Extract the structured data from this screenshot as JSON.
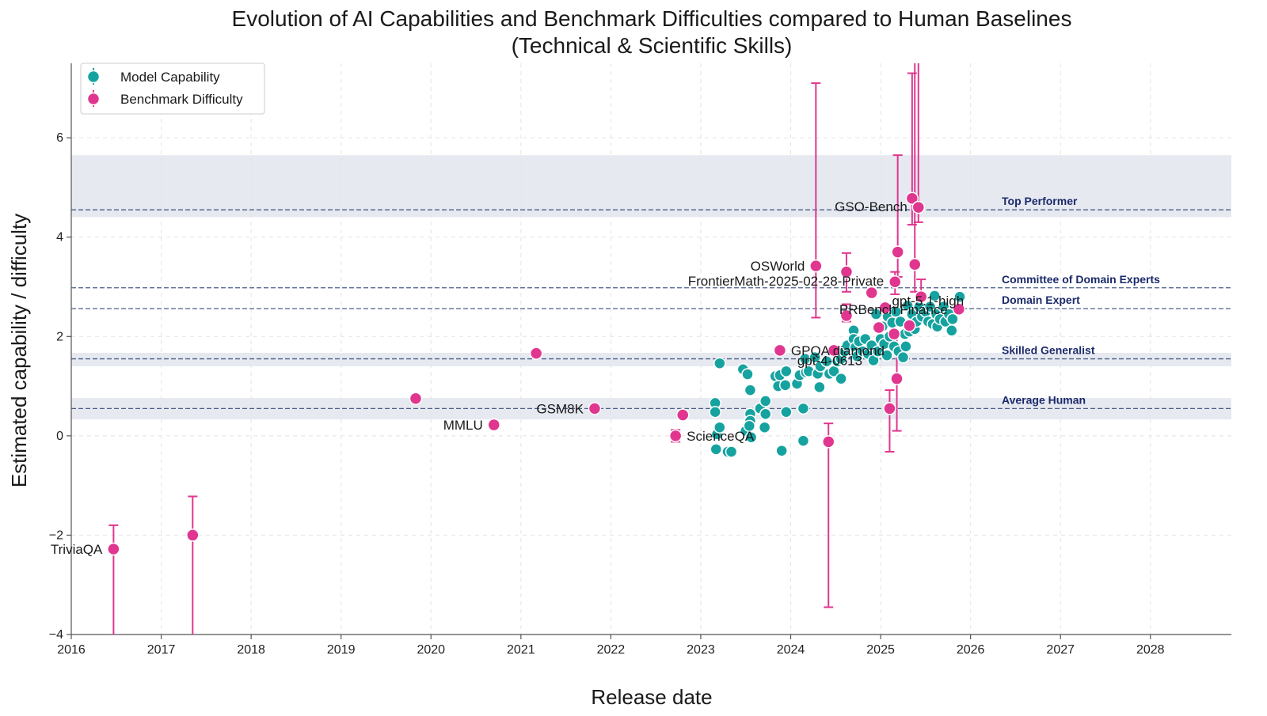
{
  "chart_data": {
    "type": "scatter",
    "title": "Evolution of AI Capabilities and Benchmark Difficulties compared to Human Baselines",
    "subtitle": "(Technical & Scientific Skills)",
    "xlabel": "Release date",
    "ylabel": "Estimated capability / difficulty",
    "xlim": [
      2016.0,
      2028.9
    ],
    "ylim": [
      -4.0,
      7.5
    ],
    "x_ticks": [
      2016,
      2017,
      2018,
      2019,
      2020,
      2021,
      2022,
      2023,
      2024,
      2025,
      2026,
      2027,
      2028
    ],
    "x_tick_labels": [
      "2016",
      "2017",
      "2018",
      "2019",
      "2020",
      "2021",
      "2022",
      "2023",
      "2024",
      "2025",
      "2026",
      "2027",
      "2028"
    ],
    "y_ticks": [
      -4,
      -2,
      0,
      2,
      4,
      6
    ],
    "y_tick_labels": [
      "−4",
      "−2",
      "0",
      "2",
      "4",
      "6"
    ],
    "grid": true,
    "legend_position": "top-left",
    "colors": {
      "model": "#16a3a0",
      "benchmark": "#e0368f",
      "band": "#e6e9f0",
      "hline": "#4a5e86",
      "hline_label": "#1b2a6b"
    },
    "legend": [
      {
        "label": "Model Capability",
        "color": "#16a3a0"
      },
      {
        "label": "Benchmark Difficulty",
        "color": "#e0368f"
      }
    ],
    "human_baselines": [
      {
        "label": "Top Performer",
        "value": 4.55,
        "band": [
          4.4,
          5.65
        ]
      },
      {
        "label": "Committee of Domain Experts",
        "value": 2.98,
        "band": null
      },
      {
        "label": "Domain Expert",
        "value": 2.56,
        "band": null
      },
      {
        "label": "Skilled Generalist",
        "value": 1.55,
        "band": [
          1.4,
          1.67
        ]
      },
      {
        "label": "Average Human",
        "value": 0.55,
        "band": [
          0.33,
          0.76
        ]
      }
    ],
    "benchmarks": [
      {
        "name": "TriviaQA",
        "x": 2016.47,
        "y": -2.28,
        "lo": -4.0,
        "hi": -1.8,
        "label": "TriviaQA"
      },
      {
        "name": "",
        "x": 2017.35,
        "y": -2.0,
        "lo": -4.0,
        "hi": -1.22,
        "label": ""
      },
      {
        "name": "",
        "x": 2019.83,
        "y": 0.75,
        "lo": null,
        "hi": null,
        "label": ""
      },
      {
        "name": "MMLU",
        "x": 2020.7,
        "y": 0.22,
        "lo": null,
        "hi": null,
        "label": "MMLU"
      },
      {
        "name": "",
        "x": 2021.17,
        "y": 1.66,
        "lo": null,
        "hi": null,
        "label": ""
      },
      {
        "name": "GSM8K",
        "x": 2021.82,
        "y": 0.55,
        "lo": null,
        "hi": null,
        "label": "GSM8K"
      },
      {
        "name": "ScienceQA",
        "x": 2022.72,
        "y": 0.0,
        "lo": -0.12,
        "hi": 0.12,
        "label": "ScienceQA"
      },
      {
        "name": "",
        "x": 2022.8,
        "y": 0.42,
        "lo": null,
        "hi": null,
        "label": ""
      },
      {
        "name": "GPQA diamond",
        "x": 2023.88,
        "y": 1.72,
        "lo": null,
        "hi": null,
        "label": "GPQA diamond"
      },
      {
        "name": "OSWorld",
        "x": 2024.28,
        "y": 3.42,
        "lo": 2.38,
        "hi": 7.1,
        "label": "OSWorld"
      },
      {
        "name": "",
        "x": 2024.42,
        "y": -0.12,
        "lo": -3.45,
        "hi": 0.25,
        "label": ""
      },
      {
        "name": "",
        "x": 2024.48,
        "y": 1.72,
        "lo": null,
        "hi": null,
        "label": ""
      },
      {
        "name": "",
        "x": 2024.62,
        "y": 3.3,
        "lo": 2.9,
        "hi": 3.68,
        "label": ""
      },
      {
        "name": "",
        "x": 2024.62,
        "y": 2.42,
        "lo": 2.3,
        "hi": 2.65,
        "label": ""
      },
      {
        "name": "",
        "x": 2024.9,
        "y": 2.88,
        "lo": null,
        "hi": null,
        "label": ""
      },
      {
        "name": "",
        "x": 2024.98,
        "y": 2.18,
        "lo": null,
        "hi": null,
        "label": ""
      },
      {
        "name": "",
        "x": 2025.05,
        "y": 2.58,
        "lo": null,
        "hi": null,
        "label": ""
      },
      {
        "name": "",
        "x": 2025.1,
        "y": 0.55,
        "lo": -0.32,
        "hi": 0.92,
        "label": ""
      },
      {
        "name": "FrontierMath-2025-02-28-Private",
        "x": 2025.16,
        "y": 3.1,
        "lo": 2.85,
        "hi": 3.3,
        "label": "FrontierMath-2025-02-28-Private"
      },
      {
        "name": "",
        "x": 2025.15,
        "y": 2.05,
        "lo": null,
        "hi": null,
        "label": ""
      },
      {
        "name": "",
        "x": 2025.19,
        "y": 3.7,
        "lo": 3.2,
        "hi": 5.65,
        "label": ""
      },
      {
        "name": "",
        "x": 2025.18,
        "y": 1.15,
        "lo": 0.1,
        "hi": 2.0,
        "label": ""
      },
      {
        "name": "",
        "x": 2025.32,
        "y": 2.22,
        "lo": null,
        "hi": null,
        "label": ""
      },
      {
        "name": "",
        "x": 2025.35,
        "y": 4.78,
        "lo": 4.25,
        "hi": 7.3,
        "label": ""
      },
      {
        "name": "",
        "x": 2025.38,
        "y": 3.45,
        "lo": 2.9,
        "hi": 7.5,
        "label": ""
      },
      {
        "name": "GSO-Bench",
        "x": 2025.42,
        "y": 4.6,
        "lo": 4.3,
        "hi": 7.5,
        "label": "GSO-Bench"
      },
      {
        "name": "",
        "x": 2025.45,
        "y": 2.8,
        "lo": 2.6,
        "hi": 3.15,
        "label": ""
      },
      {
        "name": "PRBench Finance",
        "x": 2025.87,
        "y": 2.55,
        "lo": null,
        "hi": null,
        "label": "PRBench Finance"
      }
    ],
    "models": [
      {
        "name": "",
        "x": 2023.16,
        "y": 0.66,
        "label": ""
      },
      {
        "name": "",
        "x": 2023.16,
        "y": 0.48,
        "label": ""
      },
      {
        "name": "",
        "x": 2023.18,
        "y": 0.03,
        "label": ""
      },
      {
        "name": "",
        "x": 2023.17,
        "y": -0.27,
        "label": ""
      },
      {
        "name": "",
        "x": 2023.21,
        "y": 0.17,
        "label": ""
      },
      {
        "name": "",
        "x": 2023.21,
        "y": 1.46,
        "label": ""
      },
      {
        "name": "",
        "x": 2023.3,
        "y": -0.32,
        "label": ""
      },
      {
        "name": "",
        "x": 2023.34,
        "y": -0.32,
        "label": ""
      },
      {
        "name": "",
        "x": 2023.47,
        "y": 1.34,
        "label": ""
      },
      {
        "name": "",
        "x": 2023.5,
        "y": 0.1,
        "label": ""
      },
      {
        "name": "",
        "x": 2023.52,
        "y": 1.24,
        "label": ""
      },
      {
        "name": "",
        "x": 2023.55,
        "y": 0.92,
        "label": ""
      },
      {
        "name": "",
        "x": 2023.55,
        "y": 0.44,
        "label": ""
      },
      {
        "name": "",
        "x": 2023.55,
        "y": 0.3,
        "label": ""
      },
      {
        "name": "",
        "x": 2023.54,
        "y": 0.2,
        "label": ""
      },
      {
        "name": "",
        "x": 2023.56,
        "y": -0.03,
        "label": ""
      },
      {
        "name": "",
        "x": 2023.66,
        "y": 0.55,
        "label": ""
      },
      {
        "name": "",
        "x": 2023.71,
        "y": 0.17,
        "label": ""
      },
      {
        "name": "",
        "x": 2023.72,
        "y": 0.44,
        "label": ""
      },
      {
        "name": "",
        "x": 2023.72,
        "y": 0.7,
        "label": ""
      },
      {
        "name": "",
        "x": 2023.83,
        "y": 1.2,
        "label": ""
      },
      {
        "name": "",
        "x": 2023.86,
        "y": 1.0,
        "label": ""
      },
      {
        "name": "",
        "x": 2023.88,
        "y": 1.22,
        "label": ""
      },
      {
        "name": "",
        "x": 2023.9,
        "y": -0.3,
        "label": ""
      },
      {
        "name": "",
        "x": 2023.94,
        "y": 1.02,
        "label": ""
      },
      {
        "name": "",
        "x": 2023.95,
        "y": 0.48,
        "label": ""
      },
      {
        "name": "gpt-4-0613",
        "x": 2023.95,
        "y": 1.3,
        "label": "gpt-4-0613"
      },
      {
        "name": "",
        "x": 2024.07,
        "y": 1.05,
        "label": ""
      },
      {
        "name": "",
        "x": 2024.1,
        "y": 1.22,
        "label": ""
      },
      {
        "name": "",
        "x": 2024.14,
        "y": 0.55,
        "label": ""
      },
      {
        "name": "",
        "x": 2024.14,
        "y": -0.1,
        "label": ""
      },
      {
        "name": "",
        "x": 2024.16,
        "y": 1.55,
        "label": ""
      },
      {
        "name": "",
        "x": 2024.17,
        "y": 1.28,
        "label": ""
      },
      {
        "name": "",
        "x": 2024.2,
        "y": 1.3,
        "label": ""
      },
      {
        "name": "",
        "x": 2024.27,
        "y": 1.58,
        "label": ""
      },
      {
        "name": "",
        "x": 2024.3,
        "y": 1.25,
        "label": ""
      },
      {
        "name": "",
        "x": 2024.32,
        "y": 0.98,
        "label": ""
      },
      {
        "name": "",
        "x": 2024.33,
        "y": 1.4,
        "label": ""
      },
      {
        "name": "",
        "x": 2024.4,
        "y": 1.5,
        "label": ""
      },
      {
        "name": "",
        "x": 2024.43,
        "y": 1.25,
        "label": ""
      },
      {
        "name": "",
        "x": 2024.48,
        "y": 1.3,
        "label": ""
      },
      {
        "name": "",
        "x": 2024.52,
        "y": 1.5,
        "label": ""
      },
      {
        "name": "",
        "x": 2024.56,
        "y": 1.15,
        "label": ""
      },
      {
        "name": "",
        "x": 2024.56,
        "y": 1.55,
        "label": ""
      },
      {
        "name": "",
        "x": 2024.6,
        "y": 1.7,
        "label": ""
      },
      {
        "name": "",
        "x": 2024.63,
        "y": 1.82,
        "label": ""
      },
      {
        "name": "",
        "x": 2024.7,
        "y": 2.12,
        "label": ""
      },
      {
        "name": "",
        "x": 2024.7,
        "y": 1.95,
        "label": ""
      },
      {
        "name": "",
        "x": 2024.72,
        "y": 1.78,
        "label": ""
      },
      {
        "name": "",
        "x": 2024.74,
        "y": 1.6,
        "label": ""
      },
      {
        "name": "",
        "x": 2024.76,
        "y": 1.9,
        "label": ""
      },
      {
        "name": "",
        "x": 2024.8,
        "y": 1.7,
        "label": ""
      },
      {
        "name": "",
        "x": 2024.83,
        "y": 1.95,
        "label": ""
      },
      {
        "name": "",
        "x": 2024.86,
        "y": 1.65,
        "label": ""
      },
      {
        "name": "",
        "x": 2024.9,
        "y": 1.82,
        "label": ""
      },
      {
        "name": "",
        "x": 2024.92,
        "y": 1.52,
        "label": ""
      },
      {
        "name": "",
        "x": 2024.95,
        "y": 2.45,
        "label": ""
      },
      {
        "name": "",
        "x": 2024.97,
        "y": 1.7,
        "label": ""
      },
      {
        "name": "",
        "x": 2025.0,
        "y": 1.95,
        "label": ""
      },
      {
        "name": "",
        "x": 2025.02,
        "y": 2.2,
        "label": ""
      },
      {
        "name": "",
        "x": 2025.04,
        "y": 1.85,
        "label": ""
      },
      {
        "name": "",
        "x": 2025.07,
        "y": 1.62,
        "label": ""
      },
      {
        "name": "",
        "x": 2025.08,
        "y": 2.4,
        "label": ""
      },
      {
        "name": "",
        "x": 2025.1,
        "y": 2.0,
        "label": ""
      },
      {
        "name": "",
        "x": 2025.13,
        "y": 2.28,
        "label": ""
      },
      {
        "name": "",
        "x": 2025.15,
        "y": 1.8,
        "label": ""
      },
      {
        "name": "",
        "x": 2025.17,
        "y": 2.5,
        "label": ""
      },
      {
        "name": "",
        "x": 2025.2,
        "y": 1.7,
        "label": ""
      },
      {
        "name": "",
        "x": 2025.22,
        "y": 2.3,
        "label": ""
      },
      {
        "name": "",
        "x": 2025.25,
        "y": 1.58,
        "label": ""
      },
      {
        "name": "",
        "x": 2025.27,
        "y": 2.05,
        "label": ""
      },
      {
        "name": "",
        "x": 2025.28,
        "y": 1.8,
        "label": ""
      },
      {
        "name": "",
        "x": 2025.3,
        "y": 2.62,
        "label": ""
      },
      {
        "name": "",
        "x": 2025.32,
        "y": 2.1,
        "label": ""
      },
      {
        "name": "gpt-5.1-high",
        "x": 2025.35,
        "y": 2.45,
        "label": "gpt-5.1-high"
      },
      {
        "name": "",
        "x": 2025.38,
        "y": 2.15,
        "label": ""
      },
      {
        "name": "",
        "x": 2025.4,
        "y": 2.3,
        "label": ""
      },
      {
        "name": "",
        "x": 2025.43,
        "y": 2.6,
        "label": ""
      },
      {
        "name": "",
        "x": 2025.46,
        "y": 2.4,
        "label": ""
      },
      {
        "name": "",
        "x": 2025.5,
        "y": 2.5,
        "label": ""
      },
      {
        "name": "",
        "x": 2025.53,
        "y": 2.3,
        "label": ""
      },
      {
        "name": "",
        "x": 2025.55,
        "y": 2.6,
        "label": ""
      },
      {
        "name": "",
        "x": 2025.58,
        "y": 2.25,
        "label": ""
      },
      {
        "name": "",
        "x": 2025.6,
        "y": 2.82,
        "label": ""
      },
      {
        "name": "",
        "x": 2025.62,
        "y": 2.45,
        "label": ""
      },
      {
        "name": "",
        "x": 2025.63,
        "y": 2.2,
        "label": ""
      },
      {
        "name": "",
        "x": 2025.66,
        "y": 2.35,
        "label": ""
      },
      {
        "name": "",
        "x": 2025.7,
        "y": 2.6,
        "label": ""
      },
      {
        "name": "",
        "x": 2025.72,
        "y": 2.3,
        "label": ""
      },
      {
        "name": "",
        "x": 2025.76,
        "y": 2.45,
        "label": ""
      },
      {
        "name": "",
        "x": 2025.79,
        "y": 2.12,
        "label": ""
      },
      {
        "name": "",
        "x": 2025.8,
        "y": 2.35,
        "label": ""
      },
      {
        "name": "",
        "x": 2025.88,
        "y": 2.8,
        "label": ""
      }
    ]
  }
}
